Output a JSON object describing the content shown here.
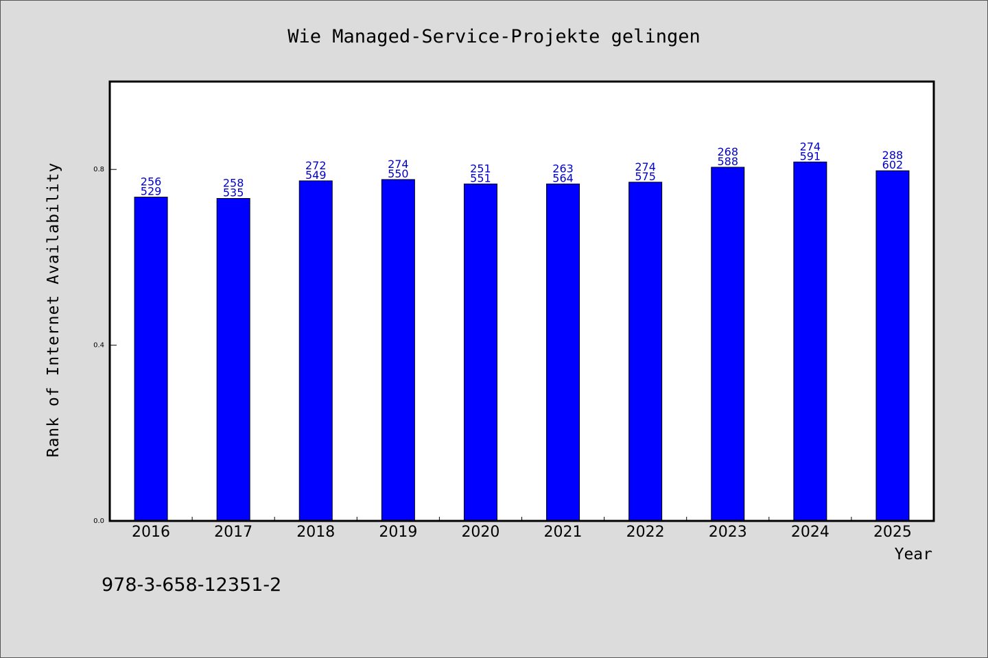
{
  "chart_data": {
    "type": "bar",
    "title": "Wie Managed-Service-Projekte gelingen",
    "xlabel": "Year",
    "ylabel": "Rank of Internet Availability",
    "categories": [
      "2016",
      "2017",
      "2018",
      "2019",
      "2020",
      "2021",
      "2022",
      "2023",
      "2024",
      "2025"
    ],
    "values": [
      0.737,
      0.734,
      0.774,
      0.777,
      0.767,
      0.767,
      0.771,
      0.805,
      0.817,
      0.797
    ],
    "data_labels": [
      [
        "256",
        "529"
      ],
      [
        "258",
        "535"
      ],
      [
        "272",
        "549"
      ],
      [
        "274",
        "550"
      ],
      [
        "251",
        "551"
      ],
      [
        "263",
        "564"
      ],
      [
        "274",
        "575"
      ],
      [
        "268",
        "588"
      ],
      [
        "274",
        "591"
      ],
      [
        "288",
        "602"
      ]
    ],
    "yticks": [
      "0.0",
      "0.4",
      "0.8"
    ],
    "ytick_values": [
      0.0,
      0.4,
      0.8
    ],
    "ylim": [
      0,
      1.0
    ],
    "grid": false,
    "legend": "none",
    "bar_color": "#0000ff",
    "label_color": "#0000cc"
  },
  "footer": {
    "isbn": "978-3-658-12351-2"
  }
}
